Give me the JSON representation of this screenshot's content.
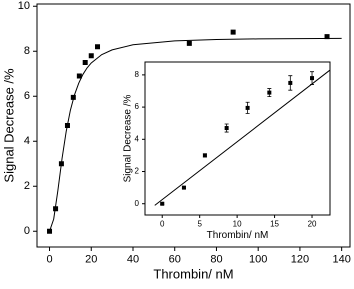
{
  "chart_data": [
    {
      "type": "scatter",
      "xlabel": "Thrombin/ nM",
      "ylabel": "Signal Decrease /%",
      "xlim": [
        -6,
        144
      ],
      "ylim": [
        -0.7,
        10.1
      ],
      "xticks": [
        0,
        20,
        40,
        60,
        80,
        100,
        120,
        140
      ],
      "yticks": [
        0,
        2,
        4,
        6,
        8,
        10
      ],
      "series": [
        {
          "color": "#000000",
          "x": [
            0,
            2.9,
            5.7,
            8.6,
            11.4,
            14.3,
            17.1,
            20,
            23,
            67,
            88,
            133
          ],
          "values": [
            0,
            1.0,
            3.0,
            4.7,
            5.95,
            6.9,
            7.5,
            7.8,
            8.2,
            8.35,
            8.85,
            8.65
          ]
        },
        {
          "type": "line",
          "color": "#000000",
          "x": [
            0,
            2,
            4,
            6,
            8,
            10,
            12,
            14,
            16,
            18,
            20,
            25,
            30,
            40,
            60,
            80,
            100,
            140
          ],
          "values": [
            0,
            0.54,
            1.81,
            3.23,
            4.44,
            5.38,
            6.07,
            6.58,
            6.97,
            7.26,
            7.48,
            7.85,
            8.06,
            8.29,
            8.46,
            8.52,
            8.55,
            8.57
          ]
        }
      ]
    },
    {
      "type": "scatter",
      "xlabel": "Thrombin/ nM",
      "ylabel": "Signal Decrease /%",
      "xlim": [
        -2.3,
        22.4
      ],
      "ylim": [
        -0.7,
        8.8
      ],
      "xticks": [
        0,
        5,
        10,
        15,
        20
      ],
      "yticks": [
        0,
        2,
        4,
        6,
        8
      ],
      "series": [
        {
          "color": "#000000",
          "x": [
            0,
            2.9,
            5.7,
            8.6,
            11.4,
            14.3,
            17.1,
            20
          ],
          "values": [
            0,
            1.0,
            3.0,
            4.7,
            5.95,
            6.9,
            7.5,
            7.8
          ],
          "error": [
            0.05,
            0.05,
            0.1,
            0.25,
            0.35,
            0.25,
            0.45,
            0.4
          ]
        },
        {
          "type": "line",
          "color": "#000000",
          "x": [
            -1,
            22.4
          ],
          "values": [
            -0.1,
            8.3
          ]
        }
      ]
    }
  ]
}
